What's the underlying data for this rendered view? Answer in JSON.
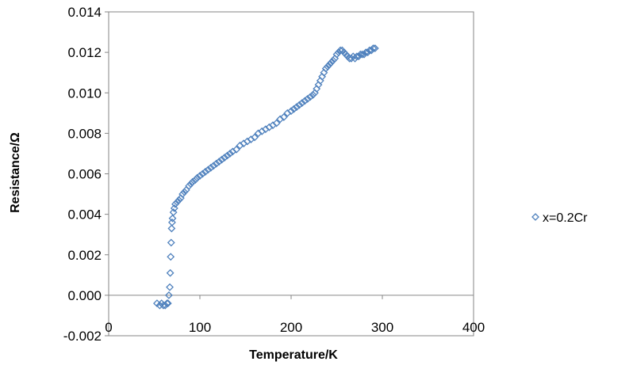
{
  "chart_data": {
    "type": "scatter",
    "title": "",
    "xlabel": "Temperature/K",
    "ylabel": "Resistance/Ω",
    "xlim": [
      0,
      400
    ],
    "ylim": [
      -0.002,
      0.014
    ],
    "x_ticks": [
      "0",
      "100",
      "200",
      "300",
      "400"
    ],
    "y_ticks": [
      "-0.002",
      "0.000",
      "0.002",
      "0.004",
      "0.006",
      "0.008",
      "0.010",
      "0.012",
      "0.014"
    ],
    "grid": false,
    "legend_position": "right",
    "series": [
      {
        "name": "x=0.2Cr",
        "color": "#4F81BD",
        "marker": "diamond-open",
        "points": [
          [
            53,
            -0.0004
          ],
          [
            56,
            -0.0005
          ],
          [
            58,
            -0.0004
          ],
          [
            60,
            -0.0005
          ],
          [
            62,
            -0.0005
          ],
          [
            64,
            -0.0004
          ],
          [
            65,
            -0.0004
          ],
          [
            66,
            0.0
          ],
          [
            67,
            0.0004
          ],
          [
            67.5,
            0.0011
          ],
          [
            68,
            0.0019
          ],
          [
            68.5,
            0.0026
          ],
          [
            69,
            0.0033
          ],
          [
            69.5,
            0.0036
          ],
          [
            70,
            0.0038
          ],
          [
            71,
            0.0041
          ],
          [
            72,
            0.0043
          ],
          [
            73,
            0.0045
          ],
          [
            75,
            0.0046
          ],
          [
            77,
            0.0047
          ],
          [
            79,
            0.0048
          ],
          [
            81,
            0.005
          ],
          [
            83,
            0.0051
          ],
          [
            85,
            0.0052
          ],
          [
            88,
            0.0054
          ],
          [
            90,
            0.0055
          ],
          [
            92,
            0.0056
          ],
          [
            95,
            0.0057
          ],
          [
            97,
            0.0058
          ],
          [
            100,
            0.0059
          ],
          [
            103,
            0.006
          ],
          [
            106,
            0.0061
          ],
          [
            109,
            0.0062
          ],
          [
            112,
            0.0063
          ],
          [
            115,
            0.0064
          ],
          [
            118,
            0.0065
          ],
          [
            121,
            0.0066
          ],
          [
            124,
            0.0067
          ],
          [
            127,
            0.0068
          ],
          [
            130,
            0.0069
          ],
          [
            133,
            0.007
          ],
          [
            136,
            0.0071
          ],
          [
            140,
            0.0072
          ],
          [
            144,
            0.0074
          ],
          [
            148,
            0.0075
          ],
          [
            152,
            0.0076
          ],
          [
            156,
            0.0077
          ],
          [
            160,
            0.0078
          ],
          [
            164,
            0.008
          ],
          [
            168,
            0.0081
          ],
          [
            172,
            0.0082
          ],
          [
            176,
            0.0083
          ],
          [
            180,
            0.0084
          ],
          [
            184,
            0.0085
          ],
          [
            188,
            0.0087
          ],
          [
            192,
            0.0088
          ],
          [
            196,
            0.009
          ],
          [
            200,
            0.0091
          ],
          [
            203,
            0.0092
          ],
          [
            206,
            0.0093
          ],
          [
            209,
            0.0094
          ],
          [
            212,
            0.0095
          ],
          [
            215,
            0.0096
          ],
          [
            218,
            0.0097
          ],
          [
            221,
            0.0098
          ],
          [
            224,
            0.0099
          ],
          [
            226,
            0.01
          ],
          [
            228,
            0.0102
          ],
          [
            230,
            0.0104
          ],
          [
            232,
            0.0106
          ],
          [
            234,
            0.0108
          ],
          [
            236,
            0.011
          ],
          [
            238,
            0.0112
          ],
          [
            240,
            0.0113
          ],
          [
            242,
            0.0114
          ],
          [
            244,
            0.0115
          ],
          [
            246,
            0.0116
          ],
          [
            248,
            0.0117
          ],
          [
            250,
            0.0119
          ],
          [
            252,
            0.012
          ],
          [
            254,
            0.0121
          ],
          [
            256,
            0.0121
          ],
          [
            258,
            0.012
          ],
          [
            260,
            0.0119
          ],
          [
            262,
            0.0118
          ],
          [
            264,
            0.0117
          ],
          [
            266,
            0.0117
          ],
          [
            268,
            0.0118
          ],
          [
            270,
            0.0117
          ],
          [
            272,
            0.0118
          ],
          [
            274,
            0.0118
          ],
          [
            276,
            0.0119
          ],
          [
            278,
            0.0119
          ],
          [
            280,
            0.0119
          ],
          [
            282,
            0.012
          ],
          [
            284,
            0.012
          ],
          [
            286,
            0.0121
          ],
          [
            288,
            0.0121
          ],
          [
            290,
            0.0122
          ],
          [
            292,
            0.0122
          ]
        ]
      }
    ]
  }
}
